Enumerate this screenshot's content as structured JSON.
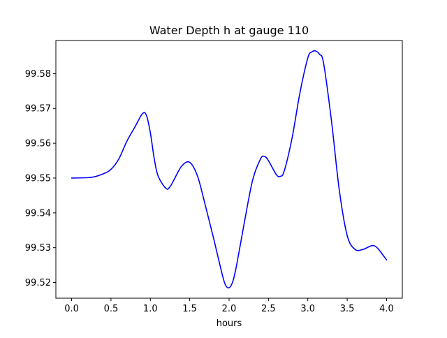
{
  "chart_data": {
    "type": "line",
    "title": "Water Depth h at gauge 110",
    "xlabel": "hours",
    "ylabel": "",
    "xlim": [
      -0.2,
      4.2
    ],
    "ylim": [
      99.5155,
      99.5895
    ],
    "x_ticks": [
      0.0,
      0.5,
      1.0,
      1.5,
      2.0,
      2.5,
      3.0,
      3.5,
      4.0
    ],
    "x_tick_labels": [
      "0.0",
      "0.5",
      "1.0",
      "1.5",
      "2.0",
      "2.5",
      "3.0",
      "3.5",
      "4.0"
    ],
    "y_ticks": [
      99.52,
      99.53,
      99.54,
      99.55,
      99.56,
      99.57,
      99.58
    ],
    "y_tick_labels": [
      "99.52",
      "99.53",
      "99.54",
      "99.55",
      "99.56",
      "99.57",
      "99.58"
    ],
    "grid": false,
    "series": [
      {
        "color": "#0000ff",
        "x": [
          0.0,
          0.25,
          0.4,
          0.5,
          0.6,
          0.7,
          0.8,
          0.9,
          0.95,
          1.0,
          1.05,
          1.1,
          1.2,
          1.25,
          1.3,
          1.4,
          1.5,
          1.6,
          1.7,
          1.8,
          1.9,
          1.95,
          2.0,
          2.05,
          2.1,
          2.2,
          2.3,
          2.4,
          2.45,
          2.5,
          2.6,
          2.65,
          2.7,
          2.8,
          2.9,
          3.0,
          3.05,
          3.1,
          3.15,
          3.2,
          3.3,
          3.4,
          3.5,
          3.6,
          3.7,
          3.8,
          3.85,
          3.9,
          4.0
        ],
        "y": [
          99.55,
          99.5502,
          99.5512,
          99.5525,
          99.5555,
          99.5605,
          99.5645,
          99.5685,
          99.568,
          99.563,
          99.5555,
          99.5505,
          99.547,
          99.5475,
          99.5495,
          99.5535,
          99.5545,
          99.5505,
          99.542,
          99.533,
          99.5235,
          99.5195,
          99.5185,
          99.5205,
          99.5255,
          99.538,
          99.5495,
          99.5555,
          99.5562,
          99.555,
          99.551,
          99.5505,
          99.552,
          99.5615,
          99.5745,
          99.5845,
          99.5862,
          99.5865,
          99.5855,
          99.583,
          99.5665,
          99.5465,
          99.5335,
          99.5295,
          99.5295,
          99.5305,
          99.5305,
          99.5295,
          99.5265
        ]
      }
    ]
  }
}
